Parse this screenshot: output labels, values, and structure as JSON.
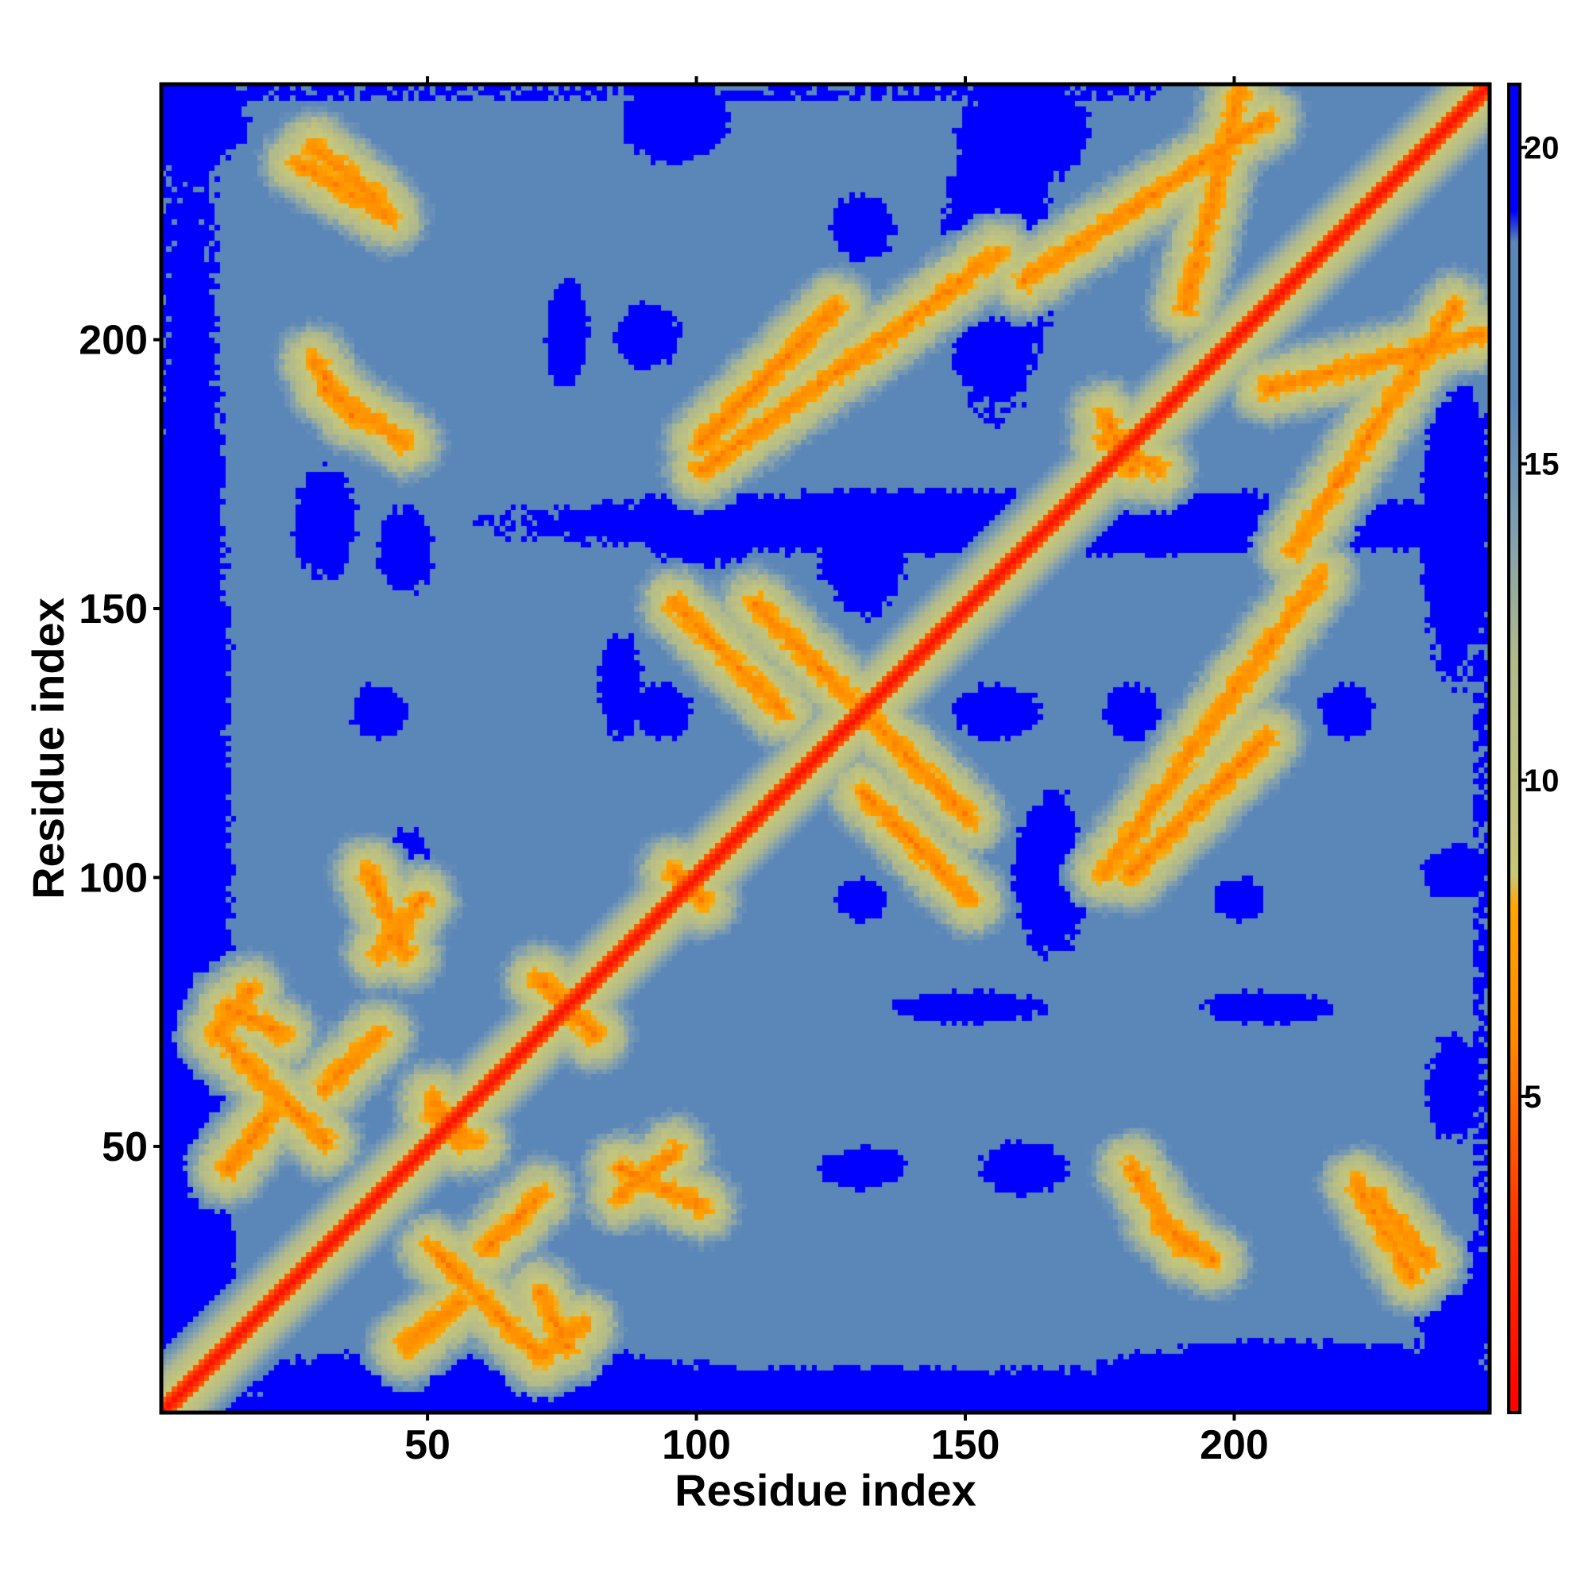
{
  "chart_data": {
    "type": "heatmap",
    "title": "",
    "xlabel": "Residue index",
    "ylabel": "Residue index",
    "n_residues": 247,
    "xlim": [
      1,
      247
    ],
    "ylim": [
      1,
      247
    ],
    "x_ticks": [
      {
        "value": 50,
        "label": "50"
      },
      {
        "value": 100,
        "label": "100"
      },
      {
        "value": 150,
        "label": "150"
      },
      {
        "value": 200,
        "label": "200"
      }
    ],
    "y_ticks": [
      {
        "value": 50,
        "label": "50"
      },
      {
        "value": 100,
        "label": "100"
      },
      {
        "value": 150,
        "label": "150"
      },
      {
        "value": 200,
        "label": "200"
      }
    ],
    "colorbar": {
      "range": [
        0,
        21
      ],
      "ticks": [
        {
          "value": 5,
          "label": "5"
        },
        {
          "value": 10,
          "label": "10"
        },
        {
          "value": 15,
          "label": "15"
        },
        {
          "value": 20,
          "label": "20"
        }
      ],
      "stops": [
        {
          "value": 0,
          "color": "#ff0000"
        },
        {
          "value": 3,
          "color": "#ff3300"
        },
        {
          "value": 6,
          "color": "#ff8c00"
        },
        {
          "value": 8,
          "color": "#ffa500"
        },
        {
          "value": 8.5,
          "color": "#c8c878"
        },
        {
          "value": 12,
          "color": "#b0b98c"
        },
        {
          "value": 14,
          "color": "#7f9fb0"
        },
        {
          "value": 16,
          "color": "#5b86b8"
        },
        {
          "value": 18.5,
          "color": "#5b86b8"
        },
        {
          "value": 19,
          "color": "#0000ff"
        },
        {
          "value": 21,
          "color": "#0000ff"
        }
      ]
    },
    "features": {
      "diagonal_halfwidth": 2.5,
      "far_threshold": 18.5,
      "contact_bands": [
        {
          "from": [
            10,
            70
          ],
          "to": [
            30,
            50
          ],
          "kind": "antiparallel"
        },
        {
          "from": [
            12,
            75
          ],
          "to": [
            22,
            70
          ],
          "kind": "antiparallel"
        },
        {
          "from": [
            12,
            45
          ],
          "to": [
            20,
            55
          ],
          "kind": "parallel"
        },
        {
          "from": [
            45,
            12
          ],
          "to": [
            55,
            20
          ],
          "kind": "parallel"
        },
        {
          "from": [
            70,
            10
          ],
          "to": [
            78,
            16
          ],
          "kind": "antiparallel"
        },
        {
          "from": [
            70,
            80
          ],
          "to": [
            80,
            70
          ],
          "kind": "antiparallel"
        },
        {
          "from": [
            50,
            55
          ],
          "to": [
            58,
            50
          ],
          "kind": "antiparallel"
        },
        {
          "from": [
            95,
            100
          ],
          "to": [
            100,
            95
          ],
          "kind": "antiparallel"
        },
        {
          "from": [
            100,
            180
          ],
          "to": [
            125,
            205
          ],
          "kind": "parallel"
        },
        {
          "from": [
            180,
            100
          ],
          "to": [
            205,
            125
          ],
          "kind": "parallel"
        },
        {
          "from": [
            130,
            115
          ],
          "to": [
            150,
            95
          ],
          "kind": "antiparallel"
        },
        {
          "from": [
            110,
            150
          ],
          "to": [
            130,
            130
          ],
          "kind": "antiparallel"
        },
        {
          "from": [
            175,
            100
          ],
          "to": [
            200,
            135
          ],
          "kind": "parallel"
        },
        {
          "from": [
            200,
            135
          ],
          "to": [
            215,
            155
          ],
          "kind": "parallel"
        },
        {
          "from": [
            30,
            190
          ],
          "to": [
            45,
            180
          ],
          "kind": "antiparallel"
        },
        {
          "from": [
            25,
            232
          ],
          "to": [
            42,
            222
          ],
          "kind": "antiparallel"
        },
        {
          "from": [
            185,
            35
          ],
          "to": [
            195,
            28
          ],
          "kind": "antiparallel"
        },
        {
          "from": [
            225,
            40
          ],
          "to": [
            235,
            28
          ],
          "kind": "antiparallel"
        },
        {
          "from": [
            205,
            190
          ],
          "to": [
            245,
            200
          ],
          "kind": "parallel"
        },
        {
          "from": [
            160,
            210
          ],
          "to": [
            205,
            240
          ],
          "kind": "parallel"
        },
        {
          "from": [
            175,
            185
          ],
          "to": [
            180,
            175
          ],
          "kind": "antiparallel"
        },
        {
          "from": [
            85,
            45
          ],
          "to": [
            100,
            38
          ],
          "kind": "parallel"
        },
        {
          "from": [
            40,
            85
          ],
          "to": [
            48,
            95
          ],
          "kind": "parallel"
        },
        {
          "from": [
            30,
            60
          ],
          "to": [
            40,
            70
          ],
          "kind": "parallel"
        }
      ],
      "far_patches": [
        {
          "x": 5,
          "y": 5,
          "rx": 8,
          "ry": 247
        },
        {
          "x": 125,
          "y": 0,
          "rx": 130,
          "ry": 8
        },
        {
          "x": 0,
          "y": 140,
          "rx": 12,
          "ry": 15
        },
        {
          "x": 160,
          "y": 165,
          "rx": 100,
          "ry": 6
        },
        {
          "x": 240,
          "y": 165,
          "rx": 6,
          "ry": 30
        },
        {
          "x": 30,
          "y": 165,
          "rx": 6,
          "ry": 10
        },
        {
          "x": 100,
          "y": 165,
          "rx": 12,
          "ry": 8
        },
        {
          "x": 130,
          "y": 160,
          "rx": 8,
          "ry": 12
        },
        {
          "x": 93,
          "y": 130,
          "rx": 5,
          "ry": 5
        },
        {
          "x": 155,
          "y": 130,
          "rx": 8,
          "ry": 5
        },
        {
          "x": 180,
          "y": 130,
          "rx": 5,
          "ry": 5
        },
        {
          "x": 220,
          "y": 130,
          "rx": 5,
          "ry": 5
        },
        {
          "x": 130,
          "y": 95,
          "rx": 5,
          "ry": 4
        },
        {
          "x": 165,
          "y": 100,
          "rx": 7,
          "ry": 15
        },
        {
          "x": 200,
          "y": 95,
          "rx": 5,
          "ry": 4
        },
        {
          "x": 150,
          "y": 75,
          "rx": 14,
          "ry": 3
        },
        {
          "x": 205,
          "y": 75,
          "rx": 12,
          "ry": 3
        },
        {
          "x": 160,
          "y": 45,
          "rx": 8,
          "ry": 5
        },
        {
          "x": 130,
          "y": 45,
          "rx": 8,
          "ry": 4
        },
        {
          "x": 155,
          "y": 215,
          "rx": 10,
          "ry": 30
        },
        {
          "x": 130,
          "y": 220,
          "rx": 6,
          "ry": 6
        },
        {
          "x": 90,
          "y": 200,
          "rx": 6,
          "ry": 6
        },
        {
          "x": 75,
          "y": 200,
          "rx": 4,
          "ry": 10
        },
        {
          "x": 45,
          "y": 160,
          "rx": 5,
          "ry": 8
        },
        {
          "x": 45,
          "y": 100,
          "rx": 5,
          "ry": 8
        },
        {
          "x": 85,
          "y": 135,
          "rx": 4,
          "ry": 10
        },
        {
          "x": 150,
          "y": 205,
          "rx": 10,
          "ry": 4
        },
        {
          "x": 40,
          "y": 130,
          "rx": 5,
          "ry": 5
        },
        {
          "x": 240,
          "y": 100,
          "rx": 6,
          "ry": 5
        },
        {
          "x": 240,
          "y": 60,
          "rx": 5,
          "ry": 10
        },
        {
          "x": 240,
          "y": 20,
          "rx": 8,
          "ry": 12
        },
        {
          "x": 210,
          "y": 5,
          "rx": 40,
          "ry": 8
        },
        {
          "x": 60,
          "y": 5,
          "rx": 45,
          "ry": 7
        },
        {
          "x": 95,
          "y": 240,
          "rx": 10,
          "ry": 8
        },
        {
          "x": 160,
          "y": 238,
          "rx": 12,
          "ry": 10
        },
        {
          "x": 5,
          "y": 240,
          "rx": 10,
          "ry": 10
        }
      ]
    }
  }
}
